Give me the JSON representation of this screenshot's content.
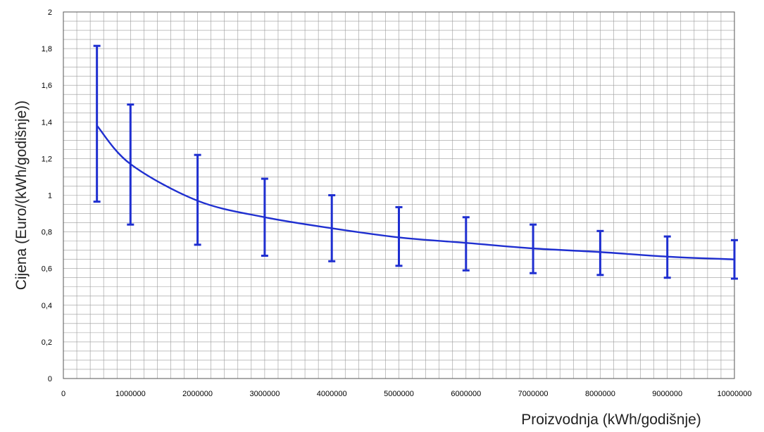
{
  "chart_data": {
    "type": "line",
    "xlabel": "Proizvodnja (kWh/godišnje)",
    "ylabel": "Cijena (Euro/(kWh/godišnje))",
    "xlim": [
      0,
      10000000
    ],
    "ylim": [
      0,
      2
    ],
    "x_ticks": [
      0,
      1000000,
      2000000,
      3000000,
      4000000,
      5000000,
      6000000,
      7000000,
      8000000,
      9000000,
      10000000
    ],
    "x_tick_labels": [
      "0",
      "1000000",
      "2000000",
      "3000000",
      "4000000",
      "5000000",
      "6000000",
      "7000000",
      "8000000",
      "9000000",
      "10000000"
    ],
    "y_ticks": [
      0,
      0.2,
      0.4,
      0.6,
      0.8,
      1,
      1.2,
      1.4,
      1.6,
      1.8,
      2
    ],
    "y_tick_labels": [
      "0",
      "0,2",
      "0,4",
      "0,6",
      "0,8",
      "1",
      "1,2",
      "1,4",
      "1,6",
      "1,8",
      "2"
    ],
    "grid": true,
    "series": [
      {
        "x": [
          500000,
          1000000,
          2000000,
          3000000,
          4000000,
          5000000,
          6000000,
          7000000,
          8000000,
          9000000,
          10000000
        ],
        "y": [
          1.38,
          1.17,
          0.97,
          0.88,
          0.82,
          0.77,
          0.74,
          0.71,
          0.69,
          0.665,
          0.65
        ],
        "error_low": [
          0.965,
          0.84,
          0.73,
          0.67,
          0.64,
          0.615,
          0.59,
          0.575,
          0.565,
          0.55,
          0.545
        ],
        "error_high": [
          1.815,
          1.495,
          1.22,
          1.09,
          1.0,
          0.935,
          0.88,
          0.84,
          0.805,
          0.775,
          0.755
        ]
      }
    ],
    "colors": {
      "line": "#1f2fd0",
      "grid": "#9a9a9a",
      "frame": "#555555"
    }
  }
}
